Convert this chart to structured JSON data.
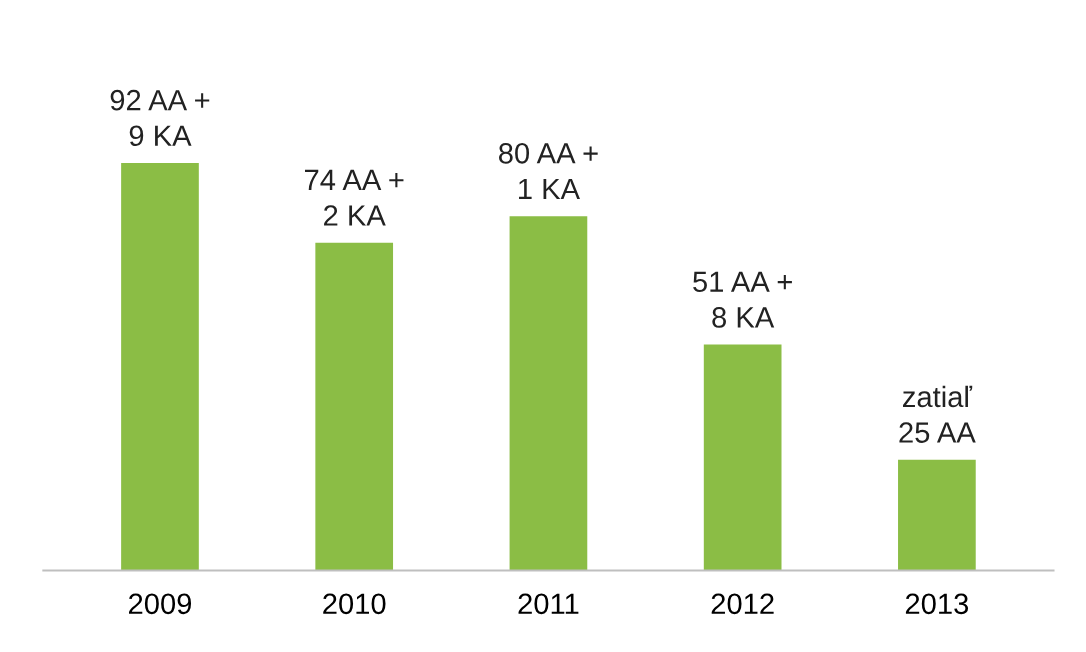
{
  "chart_data": {
    "type": "bar",
    "categories": [
      "2009",
      "2010",
      "2011",
      "2012",
      "2013"
    ],
    "values": [
      92,
      74,
      80,
      51,
      25
    ],
    "color": "#8bbd45",
    "value_labels": [
      "92 AA +\n9 KA",
      "74 AA +\n2 KA",
      "80 AA +\n1 KA",
      "51 AA +\n8 KA",
      "zatiaľ\n25 AA"
    ],
    "grid": false,
    "legend": false
  }
}
